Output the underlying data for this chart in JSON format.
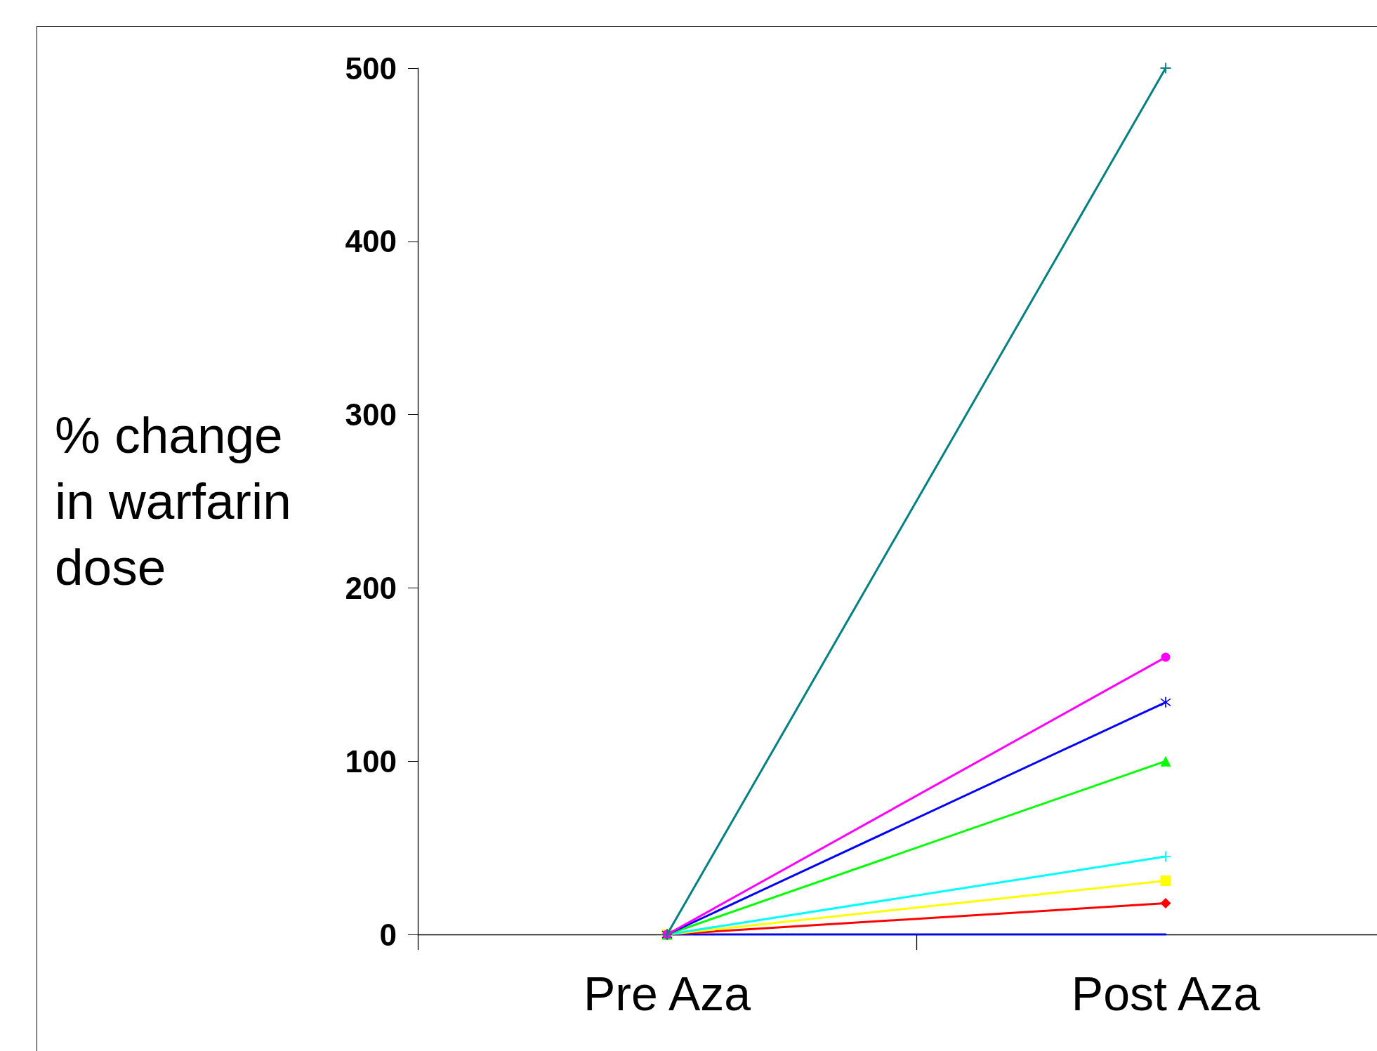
{
  "chart_data": {
    "type": "line",
    "ylabel": "% change in warfarin dose",
    "categories": [
      "Pre Aza",
      "Post Aza"
    ],
    "ylim": [
      0,
      500
    ],
    "yticks": [
      0,
      100,
      200,
      300,
      400,
      500
    ],
    "grid": false,
    "line_style": "solid",
    "series": [
      {
        "color": "#008080",
        "values": [
          0,
          500
        ],
        "marker": "cross"
      },
      {
        "color": "#ff00ff",
        "values": [
          0,
          160
        ],
        "marker": "circle"
      },
      {
        "color": "#0000ff",
        "values": [
          0,
          134
        ],
        "marker": "star"
      },
      {
        "color": "#00ff00",
        "values": [
          0,
          100
        ],
        "marker": "triangle"
      },
      {
        "color": "#00ffff",
        "values": [
          0,
          45
        ],
        "marker": "cross"
      },
      {
        "color": "#ffff00",
        "values": [
          0,
          31
        ],
        "marker": "square"
      },
      {
        "color": "#ff0000",
        "values": [
          0,
          18
        ],
        "marker": "diamond"
      },
      {
        "color": "#0000ff",
        "values": [
          0,
          0
        ],
        "marker": "none"
      }
    ]
  }
}
